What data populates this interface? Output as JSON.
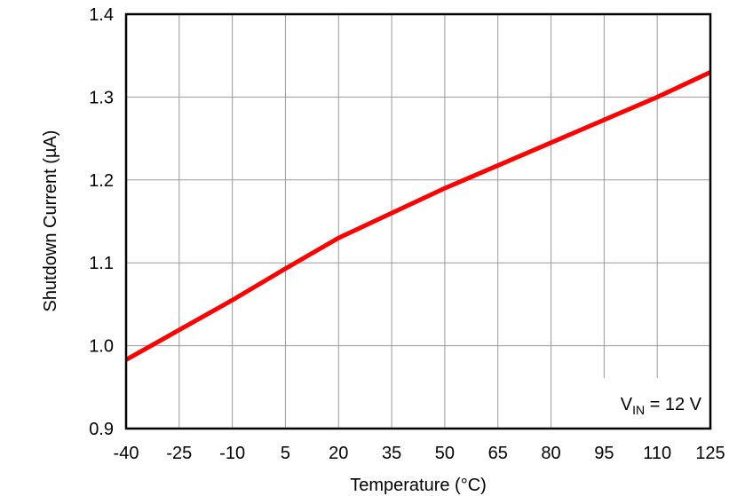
{
  "chart_data": {
    "type": "line",
    "title": "",
    "xlabel": "Temperature (°C)",
    "ylabel": "Shutdown Current (µA)",
    "xlim": [
      -40,
      125
    ],
    "ylim": [
      0.9,
      1.4
    ],
    "xticks": [
      -40,
      -25,
      -10,
      5,
      20,
      35,
      50,
      65,
      80,
      95,
      110,
      125
    ],
    "yticks": [
      0.9,
      1.0,
      1.1,
      1.2,
      1.3,
      1.4
    ],
    "ytick_labels": [
      "0.9",
      "1.0",
      "1.1",
      "1.2",
      "1.3",
      "1.4"
    ],
    "grid": true,
    "series": [
      {
        "color": "#ff0000",
        "x": [
          -40,
          -25,
          -10,
          5,
          20,
          25,
          50,
          80,
          110,
          125
        ],
        "y": [
          0.983,
          1.019,
          1.055,
          1.093,
          1.13,
          1.14,
          1.19,
          1.245,
          1.3,
          1.33
        ]
      }
    ],
    "annotation": {
      "main": "V",
      "sub": "IN",
      "rest": " = 12 V",
      "placement": "bottom-right"
    }
  }
}
